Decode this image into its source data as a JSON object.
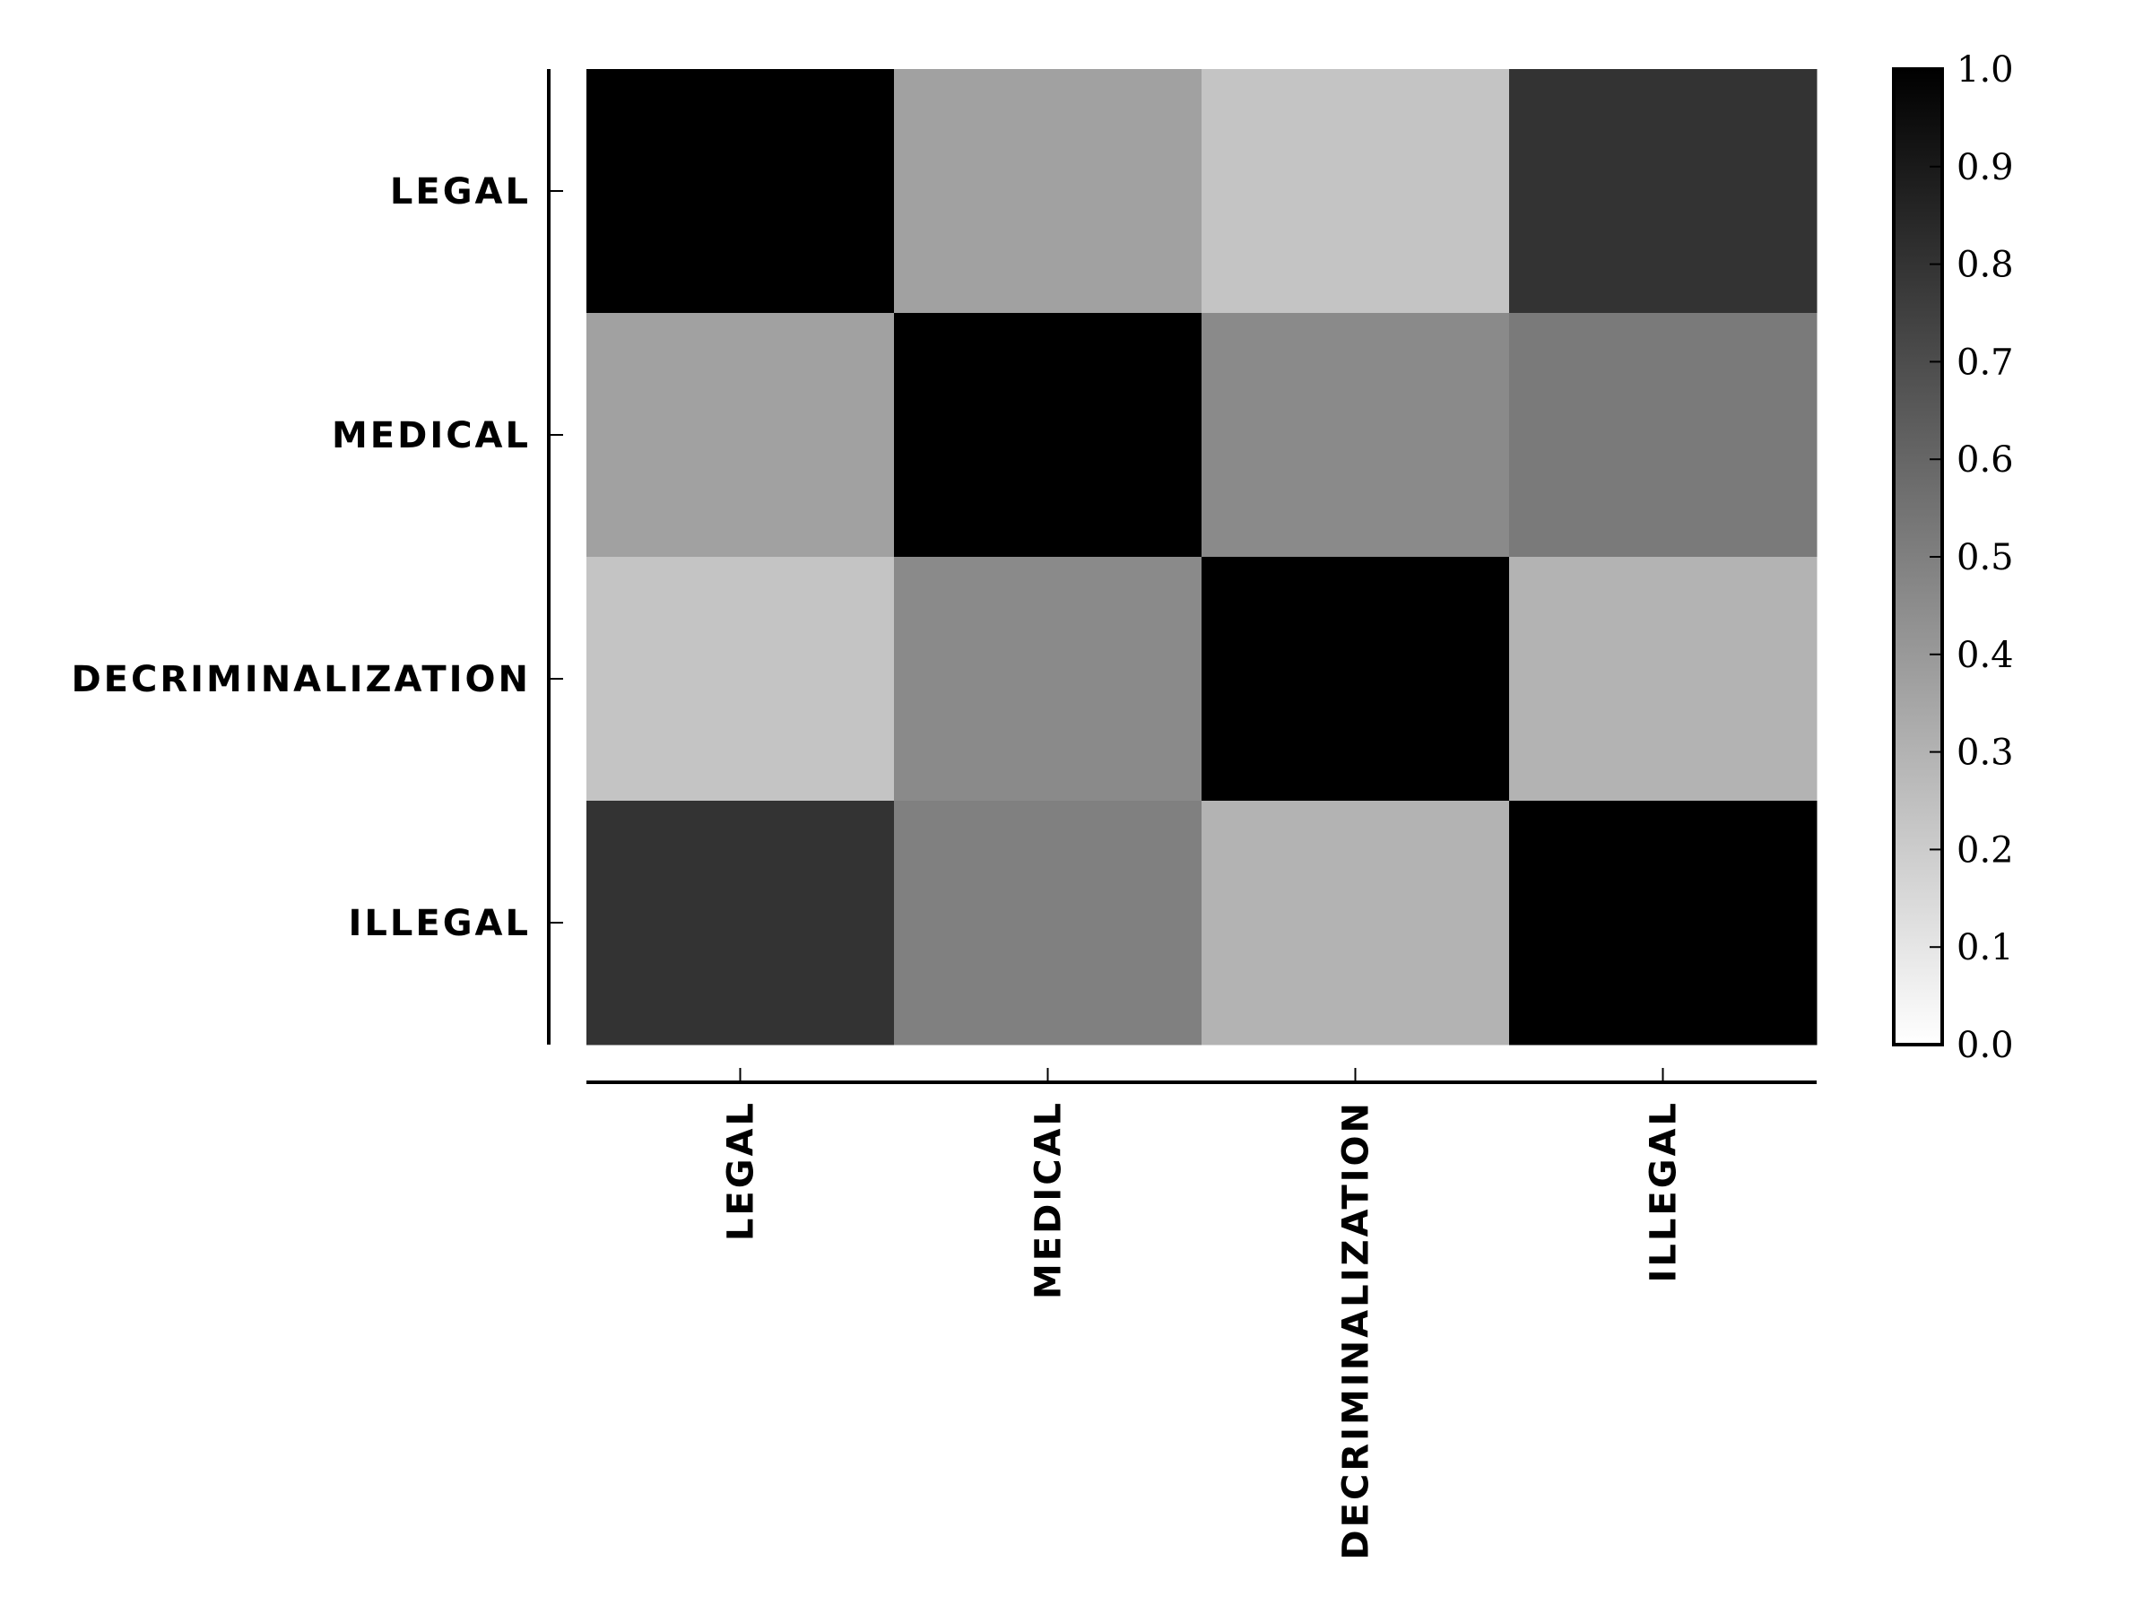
{
  "chart_data": {
    "type": "heatmap",
    "rows": [
      "LEGAL",
      "MEDICAL",
      "DECRIMINALIZATION",
      "ILLEGAL"
    ],
    "columns": [
      "LEGAL",
      "MEDICAL",
      "DECRIMINALIZATION",
      "ILLEGAL"
    ],
    "values": [
      [
        1.0,
        0.37,
        0.23,
        0.8
      ],
      [
        0.37,
        1.0,
        0.46,
        0.52
      ],
      [
        0.23,
        0.46,
        1.0,
        0.3
      ],
      [
        0.8,
        0.5,
        0.3,
        1.0
      ]
    ],
    "colormap": "gray_r",
    "color_low": "#ffffff",
    "color_high": "#000000",
    "colorbar": {
      "min": 0.0,
      "max": 1.0,
      "ticks": [
        "0.0",
        "0.1",
        "0.2",
        "0.3",
        "0.4",
        "0.5",
        "0.6",
        "0.7",
        "0.8",
        "0.9",
        "1.0"
      ]
    },
    "title": "",
    "xlabel": "",
    "ylabel": ""
  }
}
